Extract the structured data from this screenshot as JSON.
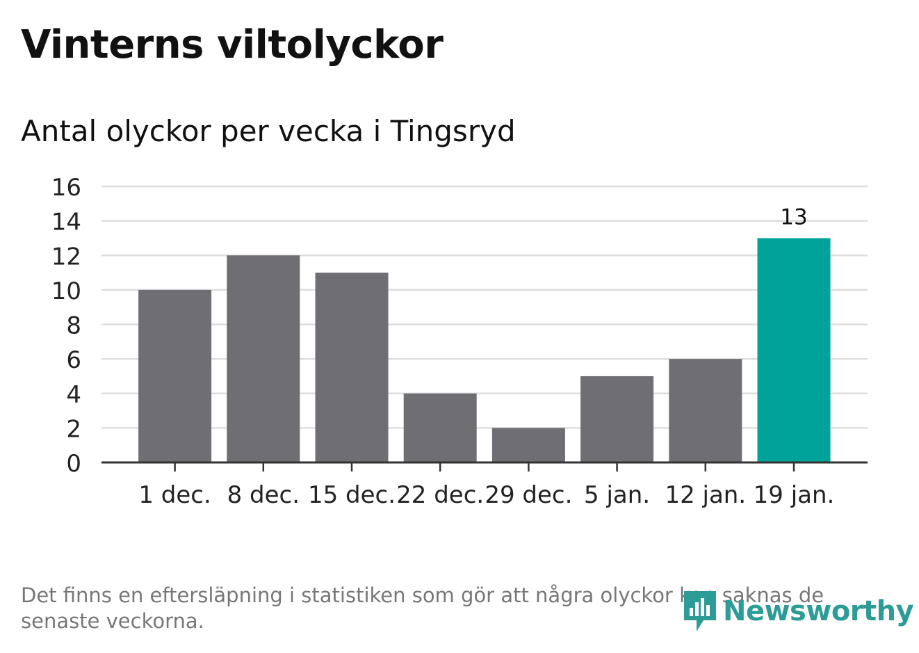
{
  "chart_data": {
    "type": "bar",
    "title": "Vinterns viltolyckor",
    "subtitle": "Antal olyckor per vecka i Tingsryd",
    "categories": [
      "1 dec.",
      "8 dec.",
      "15 dec.",
      "22 dec.",
      "29 dec.",
      "5 jan.",
      "12 jan.",
      "19 jan."
    ],
    "values": [
      10,
      12,
      11,
      4,
      2,
      5,
      6,
      13
    ],
    "ylim": [
      0,
      16
    ],
    "yticks": [
      0,
      2,
      4,
      6,
      8,
      10,
      12,
      14,
      16
    ],
    "grid": true,
    "highlight_index": 7,
    "highlight_label": "13",
    "colors": {
      "bar": "#6f6e73",
      "highlight": "#00a39a",
      "grid": "#dddddd",
      "axis": "#333333"
    }
  },
  "footnote": "Det finns en eftersläpning i statistiken som gör att några olyckor kan saknas de senaste veckorna.",
  "brand": {
    "name": "Newsworthy",
    "icon": "newsworthy-logo-icon",
    "color": "#2e9c96"
  }
}
